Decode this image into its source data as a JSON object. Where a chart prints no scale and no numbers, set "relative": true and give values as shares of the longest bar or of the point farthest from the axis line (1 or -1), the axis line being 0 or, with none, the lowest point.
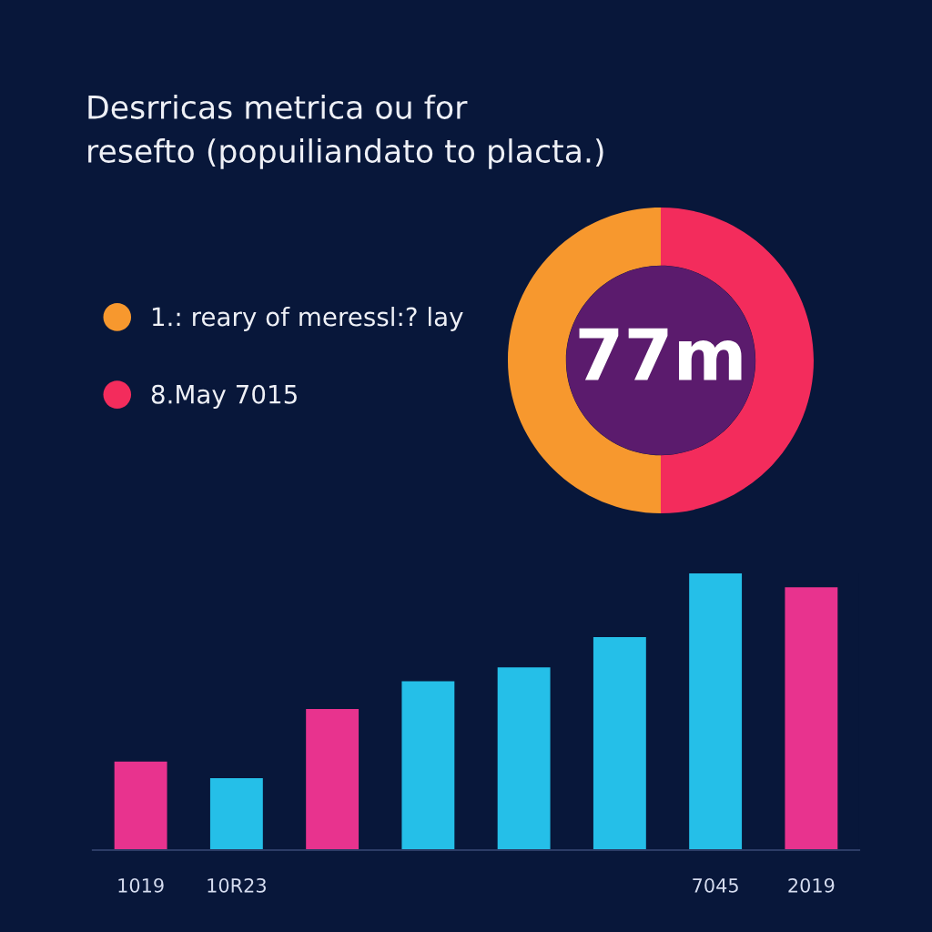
{
  "chart_data": [
    {
      "type": "donut",
      "title": "Desrricas metrica ou for\nresefto (popuiliandato to placta.)",
      "categories": [
        "1.: reary of meressl:? lay",
        "8.May 7015"
      ],
      "values": [
        50,
        50
      ],
      "colors": [
        "#f7982e",
        "#f32c5c"
      ],
      "legend": "left",
      "annotations": [
        "77m"
      ]
    },
    {
      "type": "bar",
      "categories": [
        "1019",
        "10R23",
        null,
        null,
        null,
        null,
        "7045",
        "2019"
      ],
      "values": [
        0.32,
        0.26,
        0.51,
        0.61,
        0.66,
        0.77,
        1.0,
        0.95
      ],
      "colors": [
        "#e8338e",
        "#25bfe8",
        "#e8338e",
        "#25bfe8",
        "#25bfe8",
        "#25bfe8",
        "#25bfe8",
        "#e8338e"
      ],
      "relative": true
    }
  ]
}
